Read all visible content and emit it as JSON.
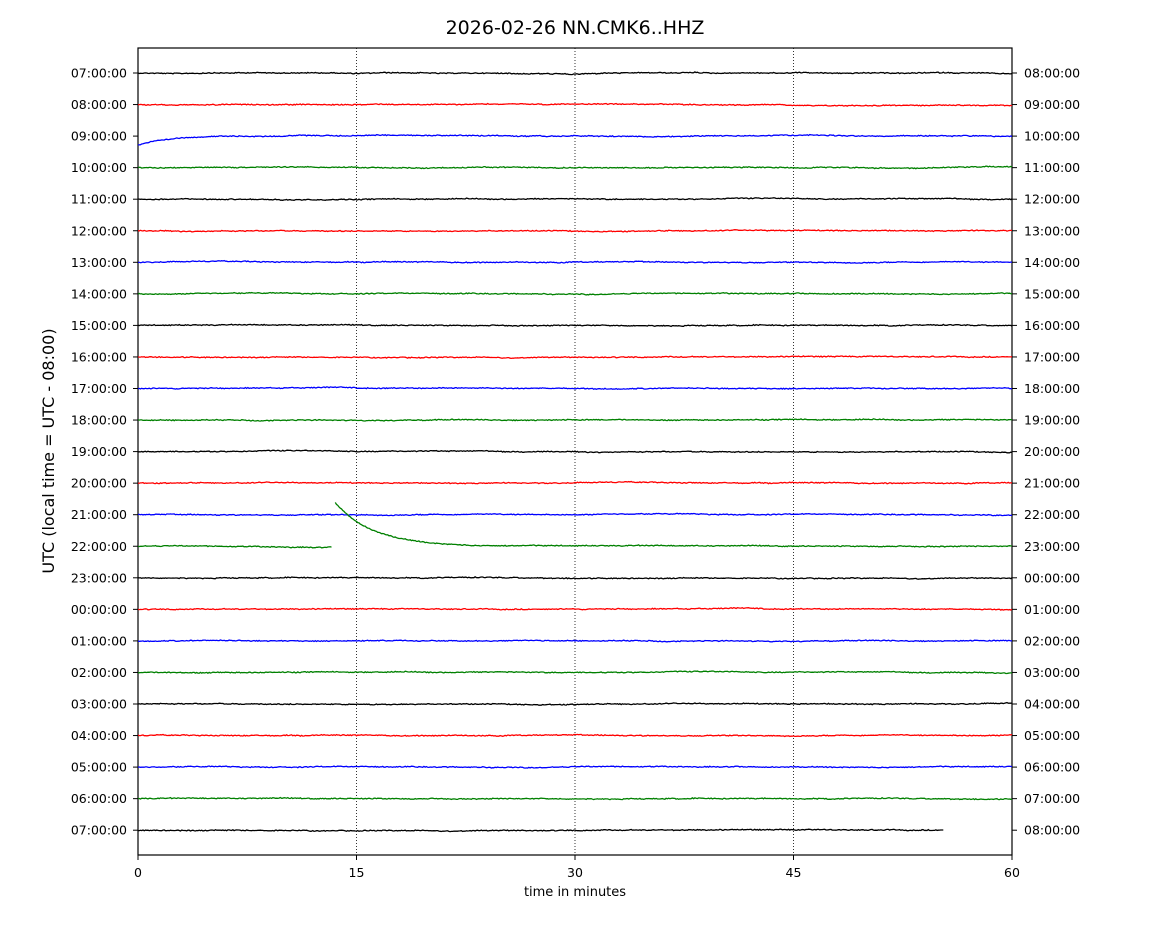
{
  "chart_data": {
    "type": "line",
    "title": "2026-02-26 NN.CMK6..HHZ",
    "xlabel": "time in minutes",
    "ylabel": "UTC (local time = UTC - 08:00)",
    "xlim": [
      0,
      60
    ],
    "x_ticks": [
      "0",
      "15",
      "30",
      "45",
      "60"
    ],
    "x_tick_values": [
      0,
      15,
      30,
      45,
      60
    ],
    "vertical_grid_minutes": [
      15,
      30,
      45
    ],
    "grid": "vertical dotted lines at 15, 30, 45",
    "left_labels": [
      "07:00:00",
      "08:00:00",
      "09:00:00",
      "10:00:00",
      "11:00:00",
      "12:00:00",
      "13:00:00",
      "14:00:00",
      "15:00:00",
      "16:00:00",
      "17:00:00",
      "18:00:00",
      "19:00:00",
      "20:00:00",
      "21:00:00",
      "22:00:00",
      "23:00:00",
      "00:00:00",
      "01:00:00",
      "02:00:00",
      "03:00:00",
      "04:00:00",
      "05:00:00",
      "06:00:00",
      "07:00:00"
    ],
    "right_labels": [
      "08:00:00",
      "09:00:00",
      "10:00:00",
      "11:00:00",
      "12:00:00",
      "13:00:00",
      "14:00:00",
      "15:00:00",
      "16:00:00",
      "17:00:00",
      "18:00:00",
      "19:00:00",
      "20:00:00",
      "21:00:00",
      "22:00:00",
      "23:00:00",
      "00:00:00",
      "01:00:00",
      "02:00:00",
      "03:00:00",
      "04:00:00",
      "05:00:00",
      "06:00:00",
      "07:00:00",
      "08:00:00"
    ],
    "trace_colors": [
      "#000000",
      "#ff0000",
      "#0000ff",
      "#008000"
    ],
    "last_trace_end_minute": 55.3,
    "event": {
      "trace_index": 15,
      "gap_start_minute": 13.3,
      "gap_end_minute": 13.5,
      "description_note": ""
    }
  }
}
